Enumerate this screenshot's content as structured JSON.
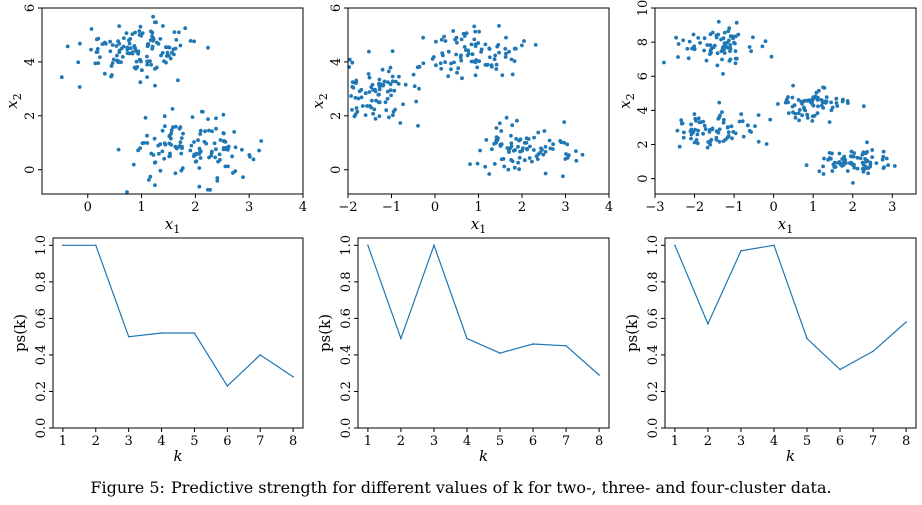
{
  "figure": {
    "caption_label": "Figure 5:",
    "caption_text": "Predictive strength for different values of k for two-, three- and four-cluster data.",
    "colors": {
      "points": "#1f77b4",
      "line": "#1f77b4",
      "axes": "#000000"
    }
  },
  "chart_data": [
    {
      "id": "two-cluster-scatter",
      "type": "scatter",
      "title": "",
      "xlabel": "x1",
      "ylabel": "x2",
      "xlim": [
        -0.85,
        4.0
      ],
      "ylim": [
        -0.9,
        6.0
      ],
      "xticks": [
        0,
        1,
        2,
        3,
        4
      ],
      "yticks": [
        0,
        2,
        4,
        6
      ],
      "clusters": [
        {
          "center": [
            0.95,
            4.45
          ],
          "sd": [
            0.55,
            0.5
          ],
          "n": 130
        },
        {
          "center": [
            1.9,
            0.75
          ],
          "sd": [
            0.6,
            0.55
          ],
          "n": 130
        }
      ]
    },
    {
      "id": "three-cluster-scatter",
      "type": "scatter",
      "title": "",
      "xlabel": "x1",
      "ylabel": "x2",
      "xlim": [
        -2.0,
        4.0
      ],
      "ylim": [
        -0.9,
        6.0
      ],
      "xticks": [
        -2,
        -1,
        0,
        1,
        2,
        3,
        4
      ],
      "yticks": [
        0,
        2,
        4,
        6
      ],
      "clusters": [
        {
          "center": [
            -1.3,
            2.8
          ],
          "sd": [
            0.5,
            0.6
          ],
          "n": 90
        },
        {
          "center": [
            1.0,
            4.3
          ],
          "sd": [
            0.55,
            0.5
          ],
          "n": 90
        },
        {
          "center": [
            2.05,
            0.8
          ],
          "sd": [
            0.55,
            0.5
          ],
          "n": 90
        }
      ]
    },
    {
      "id": "four-cluster-scatter",
      "type": "scatter",
      "title": "",
      "xlabel": "x1",
      "ylabel": "x2",
      "xlim": [
        -3.0,
        3.6
      ],
      "ylim": [
        -0.9,
        10.0
      ],
      "xticks": [
        -3,
        -2,
        -1,
        0,
        1,
        2,
        3
      ],
      "yticks": [
        0,
        2,
        4,
        6,
        8,
        10
      ],
      "clusters": [
        {
          "center": [
            -1.5,
            7.7
          ],
          "sd": [
            0.5,
            0.55
          ],
          "n": 75
        },
        {
          "center": [
            -1.5,
            2.8
          ],
          "sd": [
            0.5,
            0.55
          ],
          "n": 75
        },
        {
          "center": [
            0.95,
            4.4
          ],
          "sd": [
            0.45,
            0.5
          ],
          "n": 75
        },
        {
          "center": [
            2.0,
            0.9
          ],
          "sd": [
            0.5,
            0.5
          ],
          "n": 75
        }
      ]
    },
    {
      "id": "two-cluster-ps",
      "type": "line",
      "title": "",
      "xlabel": "k",
      "ylabel": "ps(k)",
      "xlim": [
        0.7,
        8.3
      ],
      "ylim": [
        0.0,
        1.04
      ],
      "xticks": [
        1,
        2,
        3,
        4,
        5,
        6,
        7,
        8
      ],
      "yticks": [
        0.0,
        0.2,
        0.4,
        0.6,
        0.8,
        1.0
      ],
      "x": [
        1,
        2,
        3,
        4,
        5,
        6,
        7,
        8
      ],
      "y": [
        1.0,
        1.0,
        0.5,
        0.52,
        0.52,
        0.23,
        0.4,
        0.28
      ]
    },
    {
      "id": "three-cluster-ps",
      "type": "line",
      "title": "",
      "xlabel": "k",
      "ylabel": "ps(k)",
      "xlim": [
        0.7,
        8.3
      ],
      "ylim": [
        0.0,
        1.04
      ],
      "xticks": [
        1,
        2,
        3,
        4,
        5,
        6,
        7,
        8
      ],
      "yticks": [
        0.0,
        0.2,
        0.4,
        0.6,
        0.8,
        1.0
      ],
      "x": [
        1,
        2,
        3,
        4,
        5,
        6,
        7,
        8
      ],
      "y": [
        1.0,
        0.49,
        1.0,
        0.49,
        0.41,
        0.46,
        0.45,
        0.29
      ]
    },
    {
      "id": "four-cluster-ps",
      "type": "line",
      "title": "",
      "xlabel": "k",
      "ylabel": "ps(k)",
      "xlim": [
        0.7,
        8.3
      ],
      "ylim": [
        0.0,
        1.04
      ],
      "xticks": [
        1,
        2,
        3,
        4,
        5,
        6,
        7,
        8
      ],
      "yticks": [
        0.0,
        0.2,
        0.4,
        0.6,
        0.8,
        1.0
      ],
      "x": [
        1,
        2,
        3,
        4,
        5,
        6,
        7,
        8
      ],
      "y": [
        1.0,
        0.57,
        0.97,
        1.0,
        0.49,
        0.32,
        0.42,
        0.58
      ]
    }
  ]
}
